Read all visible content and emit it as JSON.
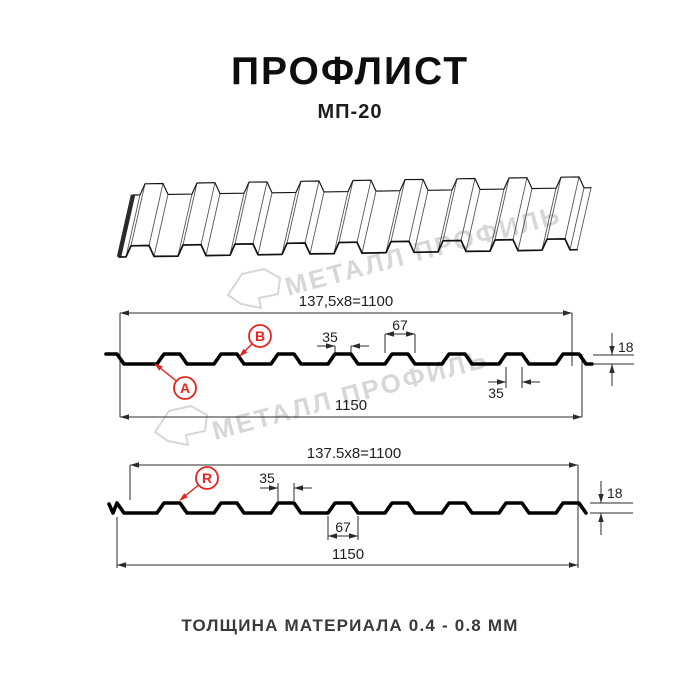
{
  "header": {
    "title": "ПРОФЛИСТ",
    "subtitle": "МП-20"
  },
  "watermark": {
    "text": "МЕТАЛЛ ПРОФИЛЬ"
  },
  "colors": {
    "profile_line": "#000000",
    "dimension_line": "#2b2b2b",
    "accent_red": "#e8231c",
    "watermark_gray": "#d7d7d7",
    "background": "#ffffff"
  },
  "front_view": {
    "module_label": "137,5x8=1100",
    "rib_top_width": "35",
    "rib_bottom_width": "67",
    "profile_height": "18",
    "rib_top_width_right": "35",
    "total_width": "1150",
    "marker_a": "A",
    "marker_b": "B"
  },
  "back_view": {
    "module_label": "137.5x8=1100",
    "rib_top_width": "35",
    "rib_bottom_width": "67",
    "profile_height": "18",
    "total_width": "1150",
    "marker_r": "R"
  },
  "footer": {
    "text": "ТОЛЩИНА МАТЕРИАЛА 0.4 - 0.8 ММ"
  }
}
